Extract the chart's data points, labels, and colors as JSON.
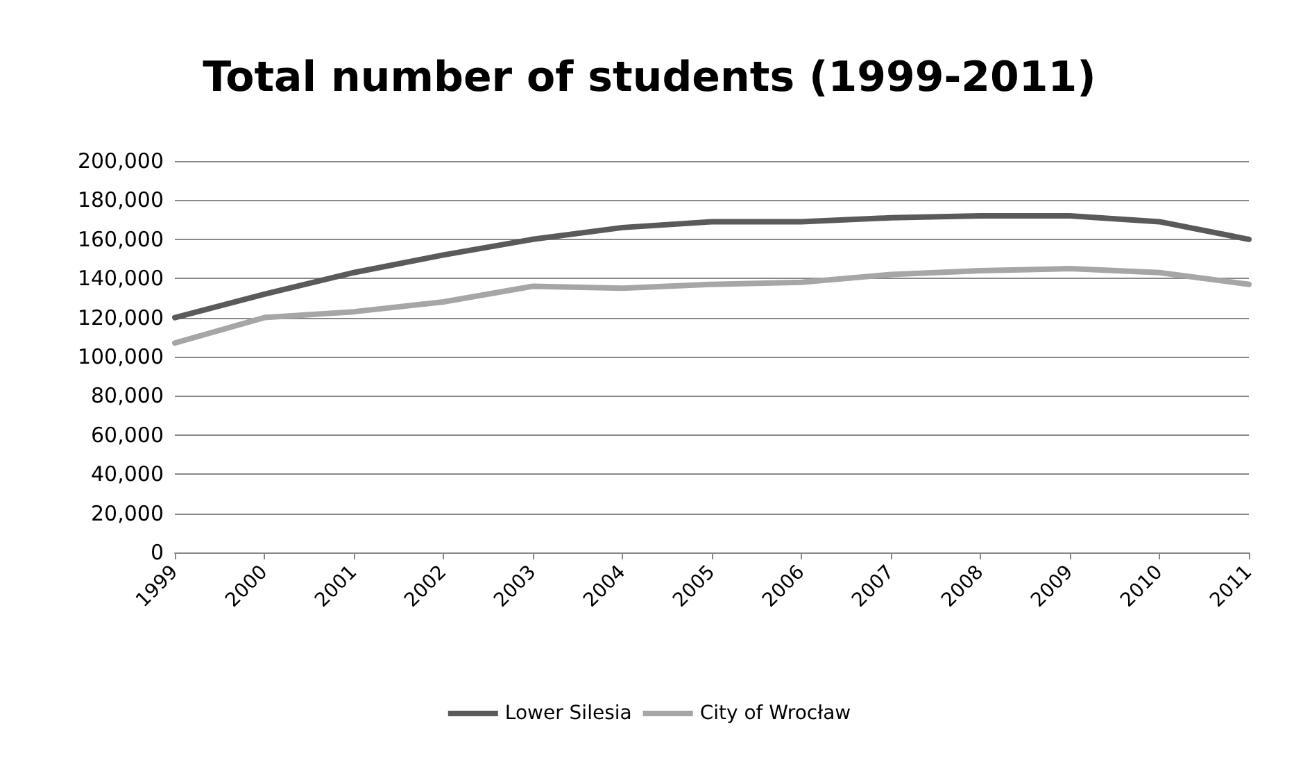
{
  "chart_data": {
    "type": "line",
    "title": "Total number of students (1999-2011)",
    "categories": [
      "1999",
      "2000",
      "2001",
      "2002",
      "2003",
      "2004",
      "2005",
      "2006",
      "2007",
      "2008",
      "2009",
      "2010",
      "2011"
    ],
    "series": [
      {
        "name": "Lower Silesia",
        "color": "#5a5a5a",
        "values": [
          120000,
          132000,
          143000,
          152000,
          160000,
          166000,
          169000,
          169000,
          171000,
          172000,
          172000,
          169000,
          160000
        ]
      },
      {
        "name": "City of Wrocław",
        "color": "#a6a6a6",
        "values": [
          107000,
          120000,
          123000,
          128000,
          136000,
          135000,
          137000,
          138000,
          142000,
          144000,
          145000,
          143000,
          137000
        ]
      }
    ],
    "ylim": [
      0,
      200000
    ],
    "yticks": [
      0,
      {
        "value": 20000,
        "label": "20,000"
      },
      {
        "value": 40000,
        "label": "40,000"
      },
      {
        "value": 60000,
        "label": "60,000"
      },
      {
        "value": 80000,
        "label": "80,000"
      },
      {
        "value": 100000,
        "label": "100,000"
      },
      {
        "value": 120000,
        "label": "120,000"
      },
      {
        "value": 140000,
        "label": "140,000"
      },
      {
        "value": 160000,
        "label": "160,000"
      },
      {
        "value": 180000,
        "label": "180,000"
      },
      {
        "value": 200000,
        "label": "200,000"
      }
    ],
    "grid": "y",
    "legend": "bottom",
    "marker": "none",
    "line_style": "solid"
  }
}
